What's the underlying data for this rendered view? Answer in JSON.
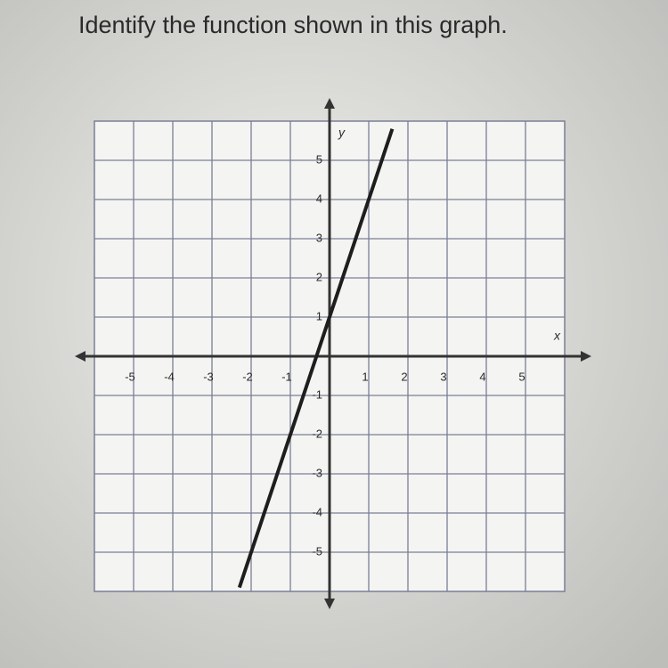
{
  "chart_data": {
    "type": "line",
    "title": "Identify the function shown in this graph.",
    "x_label": "x",
    "y_label": "y",
    "xlim": [
      -6,
      6
    ],
    "ylim": [
      -6,
      6
    ],
    "xticks": [
      -5,
      -4,
      -3,
      -2,
      -1,
      1,
      2,
      3,
      4,
      5
    ],
    "yticks": [
      -5,
      -4,
      -3,
      -2,
      -1,
      1,
      2,
      3,
      4,
      5
    ],
    "grid": true,
    "series": [
      {
        "color": "#1e1e1e",
        "x": [
          -2.3,
          1.6
        ],
        "values": [
          -5.9,
          5.8
        ]
      }
    ]
  }
}
